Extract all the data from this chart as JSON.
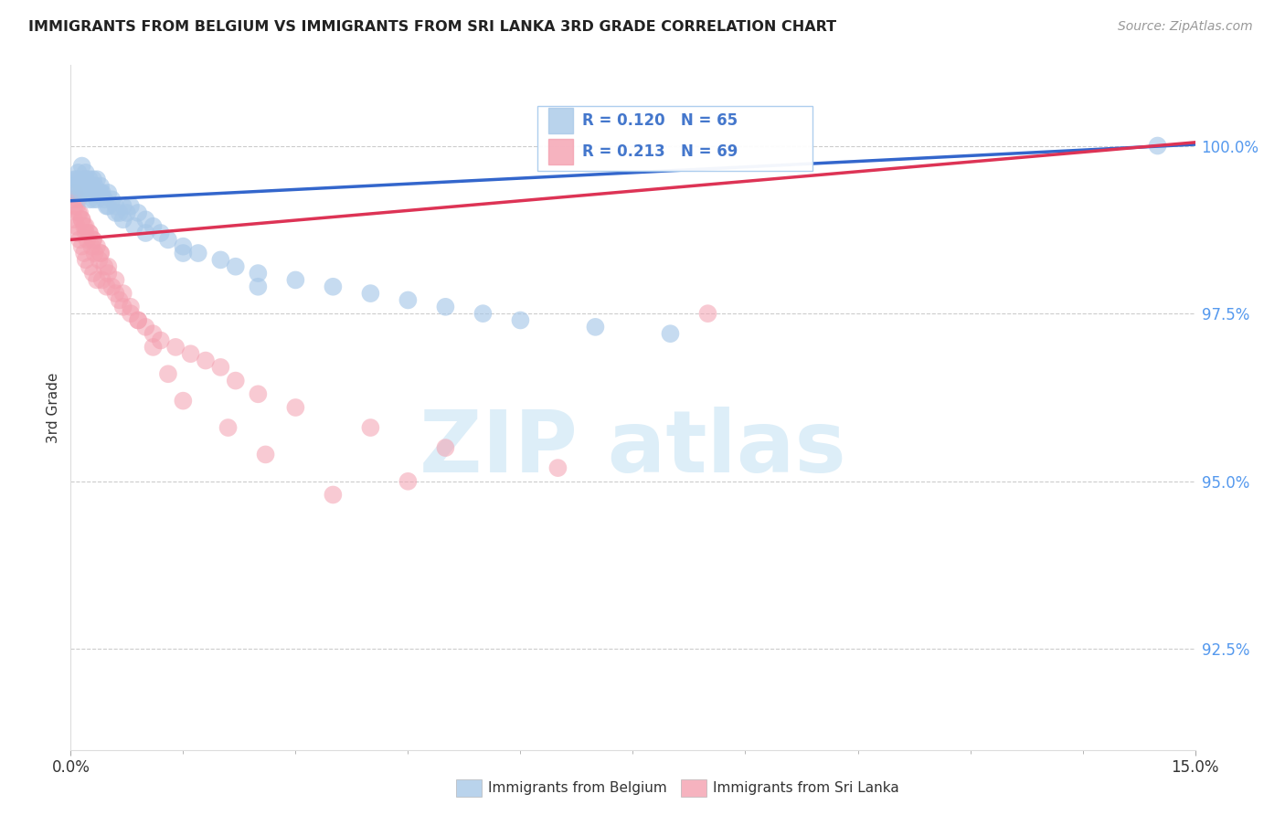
{
  "title": "IMMIGRANTS FROM BELGIUM VS IMMIGRANTS FROM SRI LANKA 3RD GRADE CORRELATION CHART",
  "source": "Source: ZipAtlas.com",
  "ylabel": "3rd Grade",
  "xmin": 0.0,
  "xmax": 15.0,
  "ymin": 91.0,
  "ymax": 101.2,
  "yticks": [
    92.5,
    95.0,
    97.5,
    100.0
  ],
  "ytick_labels": [
    "92.5%",
    "95.0%",
    "97.5%",
    "100.0%"
  ],
  "xtick_labels": [
    "0.0%",
    "15.0%"
  ],
  "legend_blue_label": "Immigrants from Belgium",
  "legend_pink_label": "Immigrants from Sri Lanka",
  "R_blue": 0.12,
  "N_blue": 65,
  "R_pink": 0.213,
  "N_pink": 69,
  "blue_color": "#a8c8e8",
  "pink_color": "#f4a0b0",
  "trendline_blue": "#3366cc",
  "trendline_pink": "#dd3355",
  "background_color": "#ffffff",
  "grid_color": "#cccccc",
  "blue_x": [
    0.05,
    0.08,
    0.1,
    0.1,
    0.12,
    0.15,
    0.15,
    0.18,
    0.2,
    0.2,
    0.22,
    0.25,
    0.25,
    0.28,
    0.3,
    0.3,
    0.32,
    0.35,
    0.35,
    0.38,
    0.4,
    0.42,
    0.45,
    0.48,
    0.5,
    0.55,
    0.6,
    0.65,
    0.7,
    0.75,
    0.8,
    0.9,
    1.0,
    1.1,
    1.2,
    1.3,
    1.5,
    1.7,
    2.0,
    2.2,
    2.5,
    3.0,
    3.5,
    4.0,
    4.5,
    5.0,
    5.5,
    6.0,
    7.0,
    8.0,
    0.05,
    0.1,
    0.15,
    0.2,
    0.25,
    0.3,
    0.4,
    0.5,
    0.6,
    0.7,
    0.85,
    1.0,
    1.5,
    2.5,
    14.5
  ],
  "blue_y": [
    99.4,
    99.5,
    99.6,
    99.3,
    99.5,
    99.7,
    99.4,
    99.5,
    99.6,
    99.3,
    99.4,
    99.5,
    99.2,
    99.4,
    99.5,
    99.3,
    99.4,
    99.5,
    99.2,
    99.3,
    99.4,
    99.3,
    99.2,
    99.1,
    99.3,
    99.2,
    99.1,
    99.0,
    99.1,
    99.0,
    99.1,
    99.0,
    98.9,
    98.8,
    98.7,
    98.6,
    98.5,
    98.4,
    98.3,
    98.2,
    98.1,
    98.0,
    97.9,
    97.8,
    97.7,
    97.6,
    97.5,
    97.4,
    97.3,
    97.2,
    99.5,
    99.4,
    99.3,
    99.5,
    99.4,
    99.2,
    99.3,
    99.1,
    99.0,
    98.9,
    98.8,
    98.7,
    98.4,
    97.9,
    100.0
  ],
  "pink_x": [
    0.02,
    0.05,
    0.05,
    0.08,
    0.08,
    0.1,
    0.1,
    0.12,
    0.12,
    0.15,
    0.15,
    0.18,
    0.18,
    0.2,
    0.2,
    0.22,
    0.25,
    0.25,
    0.28,
    0.3,
    0.3,
    0.32,
    0.35,
    0.35,
    0.38,
    0.4,
    0.42,
    0.45,
    0.48,
    0.5,
    0.55,
    0.6,
    0.65,
    0.7,
    0.8,
    0.9,
    1.0,
    1.1,
    1.2,
    1.4,
    1.6,
    1.8,
    2.0,
    2.2,
    2.5,
    3.0,
    4.0,
    5.0,
    6.5,
    8.5,
    0.05,
    0.1,
    0.15,
    0.2,
    0.25,
    0.3,
    0.4,
    0.5,
    0.6,
    0.7,
    0.8,
    0.9,
    1.1,
    1.3,
    1.5,
    2.1,
    2.6,
    3.5,
    4.5
  ],
  "pink_y": [
    99.2,
    99.3,
    98.9,
    99.1,
    98.8,
    99.2,
    98.7,
    99.0,
    98.6,
    98.9,
    98.5,
    98.8,
    98.4,
    98.7,
    98.3,
    98.6,
    98.7,
    98.2,
    98.5,
    98.6,
    98.1,
    98.4,
    98.5,
    98.0,
    98.3,
    98.4,
    98.0,
    98.2,
    97.9,
    98.1,
    97.9,
    97.8,
    97.7,
    97.6,
    97.5,
    97.4,
    97.3,
    97.2,
    97.1,
    97.0,
    96.9,
    96.8,
    96.7,
    96.5,
    96.3,
    96.1,
    95.8,
    95.5,
    95.2,
    97.5,
    99.1,
    99.0,
    98.9,
    98.8,
    98.7,
    98.6,
    98.4,
    98.2,
    98.0,
    97.8,
    97.6,
    97.4,
    97.0,
    96.6,
    96.2,
    95.8,
    95.4,
    94.8,
    95.0
  ]
}
